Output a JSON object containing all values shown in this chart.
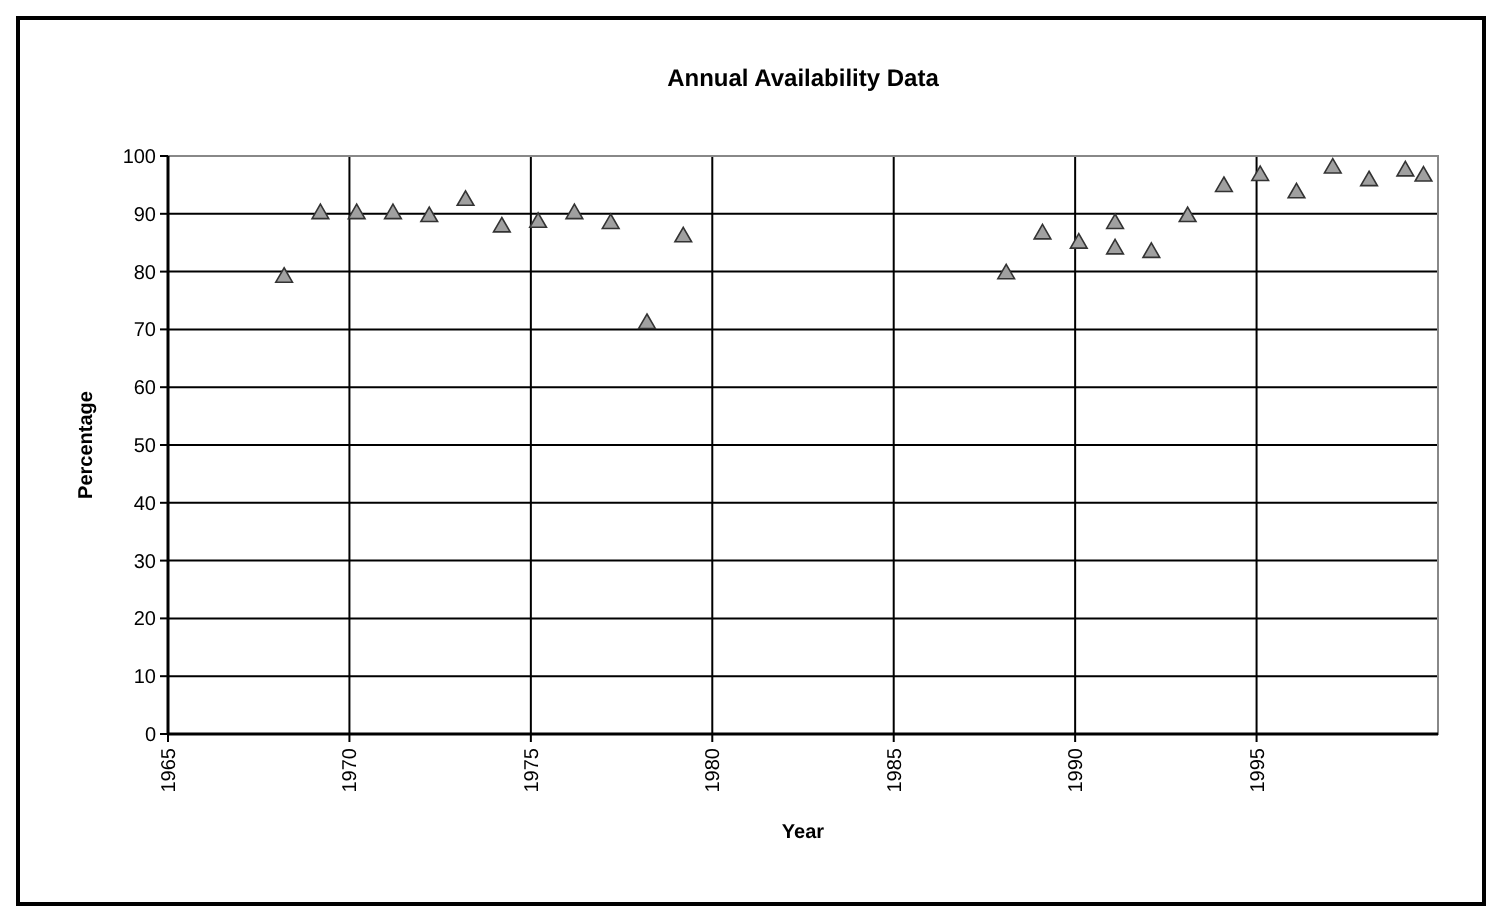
{
  "chart_data": {
    "type": "scatter",
    "title": "Annual Availability Data",
    "xlabel": "Year",
    "ylabel": "Percentage",
    "x": [
      1968.2,
      1969.2,
      1970.2,
      1971.2,
      1972.2,
      1973.2,
      1974.2,
      1975.2,
      1976.2,
      1977.2,
      1978.2,
      1979.2,
      1988.1,
      1989.1,
      1990.1,
      1991.1,
      1991.1,
      1992.1,
      1993.1,
      1994.1,
      1995.1,
      1996.1,
      1997.1,
      1998.1,
      1999.1,
      1999.6
    ],
    "series": [
      {
        "color": "#a0a0a0",
        "values": [
          79,
          90,
          90,
          90,
          89.5,
          92.3,
          87.7,
          88.5,
          90,
          88.3,
          71,
          86,
          79.6,
          86.5,
          84.9,
          88.3,
          83.9,
          83.3,
          89.5,
          94.7,
          96.6,
          93.6,
          97.9,
          95.7,
          97.4,
          96.5
        ]
      }
    ],
    "xlim": [
      1965,
      2000
    ],
    "xticks": [
      1965,
      1970,
      1975,
      1980,
      1985,
      1990,
      1995
    ],
    "ylim": [
      0,
      100
    ],
    "yticks": [
      0,
      10,
      20,
      30,
      40,
      50,
      60,
      70,
      80,
      90,
      100
    ],
    "grid": true,
    "marker": "triangle"
  }
}
